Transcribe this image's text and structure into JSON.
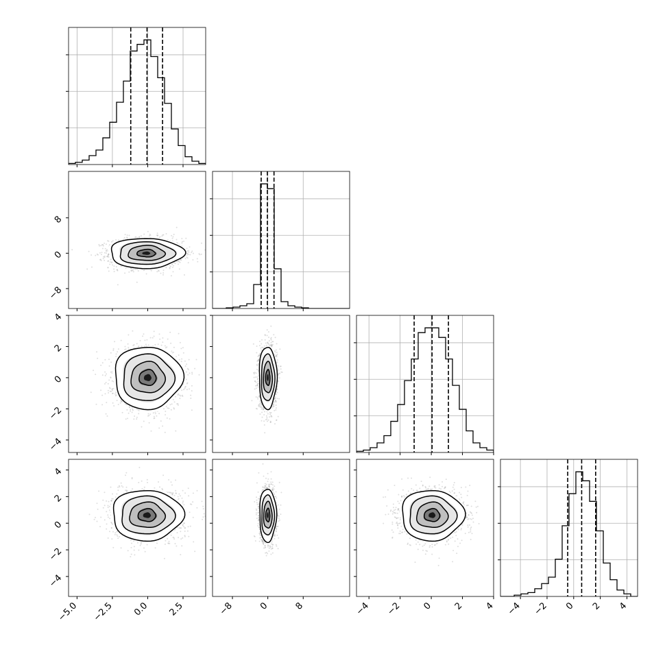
{
  "chart_data": {
    "type": "corner-plot",
    "n_params": 4,
    "params": [
      {
        "name": "",
        "ticks": [
          -5.0,
          -2.5,
          0.0,
          2.5
        ],
        "tick_labels": [
          "−5.0",
          "−2.5",
          "0.0",
          "2.5"
        ],
        "range": [
          -5.6,
          4.1
        ],
        "quantiles": [
          -1.2,
          -0.05,
          1.05
        ],
        "hist": {
          "edges": [
            -5.6,
            -5.115,
            -4.63,
            -4.145,
            -3.66,
            -3.175,
            -2.69,
            -2.205,
            -1.72,
            -1.235,
            -0.75,
            -0.265,
            0.22,
            0.705,
            1.19,
            1.675,
            2.16,
            2.645,
            3.13,
            3.615,
            4.1
          ],
          "counts": [
            1,
            2,
            4,
            8,
            13,
            24,
            38,
            56,
            75,
            102,
            108,
            112,
            97,
            78,
            55,
            32,
            17,
            7,
            3,
            1
          ]
        }
      },
      {
        "name": "",
        "ticks": [
          -8,
          0,
          8
        ],
        "tick_labels": [
          "−8",
          "0",
          "8"
        ],
        "range": [
          -12.5,
          18.5
        ],
        "quantiles": [
          -1.5,
          -0.1,
          1.4
        ],
        "hist": {
          "edges": [
            -12.5,
            -10.95,
            -9.4,
            -7.85,
            -6.3,
            -4.75,
            -3.2,
            -1.65,
            -0.1,
            1.45,
            3.0,
            4.55,
            6.1,
            7.65,
            9.2,
            10.75,
            12.3,
            13.85,
            15.4,
            16.95,
            18.5
          ],
          "counts": [
            0,
            0,
            1,
            2,
            4,
            7,
            35,
            182,
            175,
            58,
            10,
            4,
            2,
            1,
            0,
            0,
            0,
            0,
            0,
            0
          ]
        }
      },
      {
        "name": "",
        "ticks": [
          -4,
          -2,
          0,
          2,
          4
        ],
        "tick_labels": [
          "−4",
          "−2",
          "0",
          "2",
          "4"
        ],
        "range": [
          -4.8,
          4.0
        ],
        "quantiles": [
          -1.1,
          0.05,
          1.1
        ],
        "hist": {
          "edges": [
            -4.8,
            -4.36,
            -3.92,
            -3.48,
            -3.04,
            -2.6,
            -2.16,
            -1.72,
            -1.28,
            -0.84,
            -0.4,
            0.04,
            0.48,
            0.92,
            1.36,
            1.8,
            2.24,
            2.68,
            3.12,
            3.56,
            4.0
          ],
          "counts": [
            1,
            2,
            4,
            8,
            14,
            26,
            40,
            60,
            78,
            100,
            104,
            104,
            96,
            78,
            56,
            36,
            18,
            8,
            4,
            2
          ]
        }
      },
      {
        "name": "",
        "ticks": [
          -4,
          -2,
          0,
          2,
          4
        ],
        "tick_labels": [
          "−4",
          "−2",
          "0",
          "2",
          "4"
        ],
        "range": [
          -5.5,
          4.8
        ],
        "quantiles": [
          -0.45,
          0.6,
          1.65
        ],
        "hist": {
          "edges": [
            -5.5,
            -4.985,
            -4.47,
            -3.955,
            -3.44,
            -2.925,
            -2.41,
            -1.895,
            -1.38,
            -0.865,
            -0.35,
            0.165,
            0.68,
            1.195,
            1.71,
            2.225,
            2.74,
            3.255,
            3.77,
            4.285,
            4.8
          ],
          "counts": [
            0,
            0,
            1,
            2,
            3,
            6,
            10,
            15,
            29,
            55,
            80,
            97,
            90,
            74,
            51,
            26,
            13,
            5,
            2,
            0
          ]
        }
      }
    ],
    "contour_levels": [
      0.118,
      0.393,
      0.675,
      0.864
    ],
    "pairs": [
      {
        "row": 1,
        "col": 0,
        "mean": [
          -0.1,
          0.0
        ],
        "sd": [
          1.3,
          1.7
        ],
        "rho": 0.0
      },
      {
        "row": 2,
        "col": 0,
        "mean": [
          0.0,
          0.0
        ],
        "sd": [
          1.2,
          1.0
        ],
        "rho": 0.0
      },
      {
        "row": 2,
        "col": 1,
        "mean": [
          0.0,
          0.0
        ],
        "sd": [
          1.0,
          1.0
        ],
        "rho": 0.0
      },
      {
        "row": 3,
        "col": 0,
        "mean": [
          -0.05,
          0.6
        ],
        "sd": [
          1.25,
          0.95
        ],
        "rho": 0.0
      },
      {
        "row": 3,
        "col": 1,
        "mean": [
          0.0,
          0.6
        ],
        "sd": [
          0.95,
          1.0
        ],
        "rho": 0.0
      },
      {
        "row": 3,
        "col": 2,
        "mean": [
          0.05,
          0.6
        ],
        "sd": [
          1.0,
          0.95
        ],
        "rho": 0.0
      }
    ],
    "colors": {
      "line": "#000000",
      "grid": "#b0b0b0",
      "points": "#a0a0a0",
      "density_dark": "#000000",
      "density_light": "#ffffff"
    },
    "grid": true
  }
}
